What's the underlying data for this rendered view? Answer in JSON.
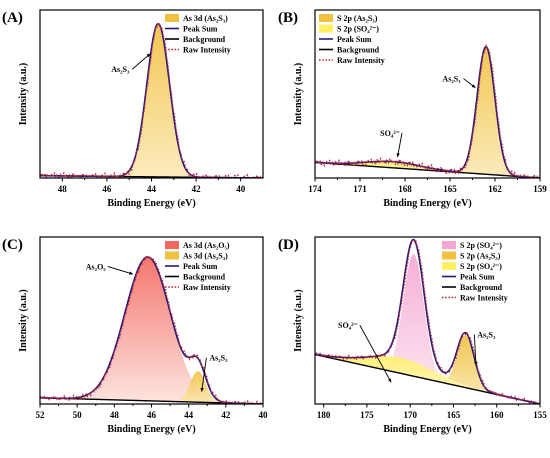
{
  "colors": {
    "gold": "#f0c040",
    "gold_light": "#fbe9b5",
    "yellow": "#ffef66",
    "yellow_light": "#fffbd6",
    "red": "#f2685f",
    "red_light": "#fde2dc",
    "pink": "#f4a6cf",
    "pink_light": "#fce9f3",
    "peak_sum": "#1f1a7a",
    "background": "#000000",
    "raw": "#c0283a",
    "frame": "#000000"
  },
  "chart_data": [
    {
      "id": "A",
      "type": "line",
      "panel_label": "(A)",
      "xlabel": "Binding Energy (eV)",
      "ylabel": "Intensity (a.u.)",
      "xlim": [
        49,
        39
      ],
      "ylim": [
        0,
        1.08
      ],
      "xticks": [
        48,
        46,
        44,
        42,
        40
      ],
      "legend_position": "top-right",
      "legend": [
        {
          "label": "As 3d (As₂S₃)",
          "kind": "fill",
          "color": "gold"
        },
        {
          "label": "Peak Sum",
          "kind": "line",
          "color": "peak_sum"
        },
        {
          "label": "Background",
          "kind": "line",
          "color": "background"
        },
        {
          "label": "Raw Intensity",
          "kind": "dots",
          "color": "raw"
        }
      ],
      "background": {
        "x": [
          49,
          39
        ],
        "y": [
          0.015,
          0.0
        ]
      },
      "components": [
        {
          "name": "As 3d (As₂S₃)",
          "center": 43.7,
          "fwhm": 1.2,
          "height": 0.985,
          "color": "gold"
        }
      ],
      "raw_noise": 0.012,
      "raw_shift": 0.03,
      "annotations": [
        {
          "text": "As₂S₃",
          "x": 45.4,
          "y": 0.68,
          "arrow_to": [
            44.05,
            0.8
          ]
        }
      ]
    },
    {
      "id": "B",
      "type": "line",
      "panel_label": "(B)",
      "xlabel": "Binding Energy (eV)",
      "ylabel": "Intensity (a.u.)",
      "xlim": [
        174,
        159
      ],
      "ylim": [
        0,
        1.08
      ],
      "xticks": [
        174,
        171,
        168,
        165,
        162,
        159
      ],
      "legend_position": "top-left",
      "legend": [
        {
          "label": "S 2p (As₂S₃)",
          "kind": "fill",
          "color": "gold"
        },
        {
          "label": "S 2p (SO₄²⁻)",
          "kind": "fill",
          "color": "yellow"
        },
        {
          "label": "Peak Sum",
          "kind": "line",
          "color": "peak_sum"
        },
        {
          "label": "Background",
          "kind": "line",
          "color": "background"
        },
        {
          "label": "Raw Intensity",
          "kind": "dots",
          "color": "raw"
        }
      ],
      "background": {
        "x": [
          174,
          159
        ],
        "y": [
          0.1,
          0.0
        ]
      },
      "components": [
        {
          "name": "S 2p (As₂S₃)",
          "center": 162.6,
          "fwhm": 1.4,
          "height": 0.82,
          "color": "gold"
        },
        {
          "name": "S 2p (SO₄²⁻)",
          "center": 168.8,
          "fwhm": 4.2,
          "height": 0.04,
          "color": "yellow"
        }
      ],
      "raw_noise": 0.012,
      "raw_shift": 0.05,
      "annotations": [
        {
          "text": "SO₄²⁻",
          "x": 169.0,
          "y": 0.27,
          "arrow_to": [
            168.5,
            0.135
          ]
        },
        {
          "text": "As₂S₃",
          "x": 164.9,
          "y": 0.62,
          "arrow_to": [
            163.3,
            0.58
          ]
        }
      ]
    },
    {
      "id": "C",
      "type": "line",
      "panel_label": "(C)",
      "xlabel": "Binding Energy (eV)",
      "ylabel": "Intensity (a.u.)",
      "xlim": [
        52,
        40
      ],
      "ylim": [
        0,
        1.08
      ],
      "xticks": [
        52,
        50,
        48,
        46,
        44,
        42,
        40
      ],
      "legend_position": "top-right",
      "legend": [
        {
          "label": "As 3d (As₂O₅)",
          "kind": "fill",
          "color": "red"
        },
        {
          "label": "As 3d (As₂S₃)",
          "kind": "fill",
          "color": "gold"
        },
        {
          "label": "Peak Sum",
          "kind": "line",
          "color": "peak_sum"
        },
        {
          "label": "Background",
          "kind": "line",
          "color": "background"
        },
        {
          "label": "Raw Intensity",
          "kind": "dots",
          "color": "raw"
        }
      ],
      "background": {
        "x": [
          52,
          40
        ],
        "y": [
          0.04,
          0.0
        ]
      },
      "components": [
        {
          "name": "As 3d (As₂O₅)",
          "center": 46.2,
          "fwhm": 2.9,
          "height": 0.93,
          "color": "red"
        },
        {
          "name": "As 3d (As₂S₃)",
          "center": 43.5,
          "fwhm": 1.0,
          "height": 0.2,
          "color": "gold"
        }
      ],
      "raw_noise": 0.01,
      "raw_shift": 0.05,
      "annotations": [
        {
          "text": "As₂O₅",
          "x": 49.0,
          "y": 0.87,
          "arrow_to": [
            47.0,
            0.84
          ]
        },
        {
          "text": "As₂S₃",
          "x": 42.4,
          "y": 0.28,
          "arrow_to": [
            43.3,
            0.08
          ]
        }
      ]
    },
    {
      "id": "D",
      "type": "line",
      "panel_label": "(D)",
      "xlabel": "Binding Energy (eV)",
      "ylabel": "Intensity (a.u.)",
      "xlim": [
        181,
        155
      ],
      "ylim": [
        0,
        1.08
      ],
      "xticks": [
        180,
        175,
        170,
        165,
        160,
        155
      ],
      "legend_position": "top-right",
      "legend": [
        {
          "label": "S 2p (SO₄²⁻)",
          "kind": "fill",
          "color": "pink"
        },
        {
          "label": "S 2p (As₂S₃)",
          "kind": "fill",
          "color": "gold"
        },
        {
          "label": "S 2p (SO₄²⁻)",
          "kind": "fill",
          "color": "yellow"
        },
        {
          "label": "Peak Sum",
          "kind": "line",
          "color": "peak_sum"
        },
        {
          "label": "Background",
          "kind": "line",
          "color": "background"
        },
        {
          "label": "Raw Intensity",
          "kind": "dots",
          "color": "raw"
        }
      ],
      "background": {
        "x": [
          181,
          155
        ],
        "y": [
          0.32,
          0.0
        ]
      },
      "components": [
        {
          "name": "S 2p (SO₄²⁻)",
          "center": 169.6,
          "fwhm": 2.8,
          "height": 0.79,
          "color": "pink"
        },
        {
          "name": "S 2p (As₂S₃)",
          "center": 163.6,
          "fwhm": 2.3,
          "height": 0.34,
          "color": "gold"
        },
        {
          "name": "S 2p (SO₄²⁻)",
          "center": 171.0,
          "fwhm": 9.0,
          "height": 0.1,
          "color": "yellow"
        }
      ],
      "raw_noise": 0.008,
      "raw_shift": 0.1,
      "annotations": [
        {
          "text": "SO₄²⁻",
          "x": 177.2,
          "y": 0.49,
          "arrow_to": [
            172.2,
            0.14
          ]
        },
        {
          "text": "As₂S₃",
          "x": 161.2,
          "y": 0.43,
          "arrow_to": [
            162.4,
            0.25
          ]
        }
      ]
    }
  ]
}
